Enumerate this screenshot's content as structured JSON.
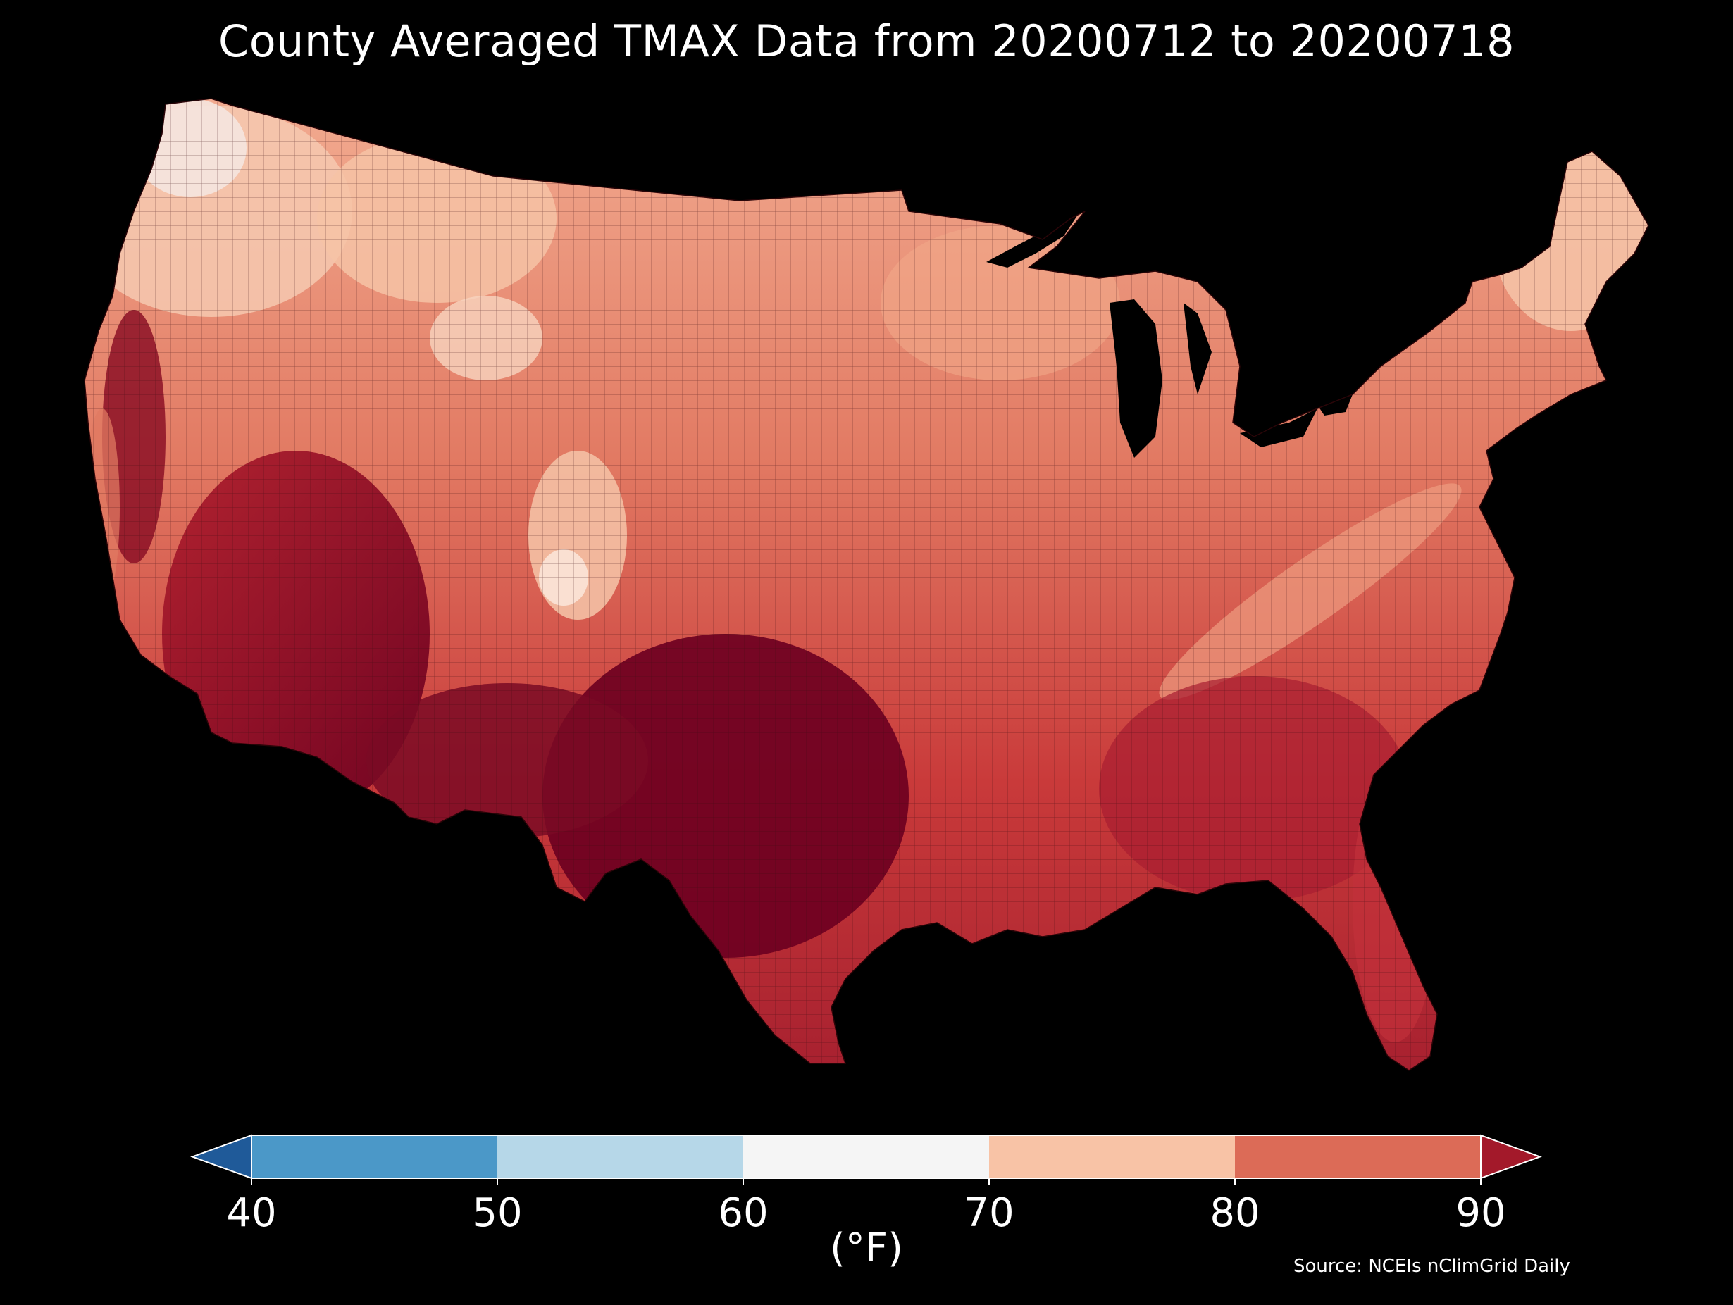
{
  "title": "County Averaged TMAX Data from 20200712 to 20200718",
  "units_label": "(°F)",
  "source": "Source: NCEIs nClimGrid Daily",
  "background_color": "#000000",
  "map": {
    "region": "Contiguous United States",
    "variable": "TMAX",
    "unit": "°F",
    "aggregation": "county average",
    "period_start": "20200712",
    "period_end": "20200718"
  },
  "colorbar": {
    "ticks": [
      "40",
      "50",
      "60",
      "70",
      "80",
      "90"
    ],
    "extend": "both",
    "bins": [
      {
        "range": "<40",
        "color": "#1f5a99"
      },
      {
        "range": "40-50",
        "color": "#4b98c8"
      },
      {
        "range": "50-60",
        "color": "#b6d7e8"
      },
      {
        "range": "60-70",
        "color": "#f5f5f5"
      },
      {
        "range": "70-80",
        "color": "#f8c3a6"
      },
      {
        "range": "80-90",
        "color": "#dc6b57"
      },
      {
        "range": ">90",
        "color": "#a3192a"
      }
    ]
  }
}
